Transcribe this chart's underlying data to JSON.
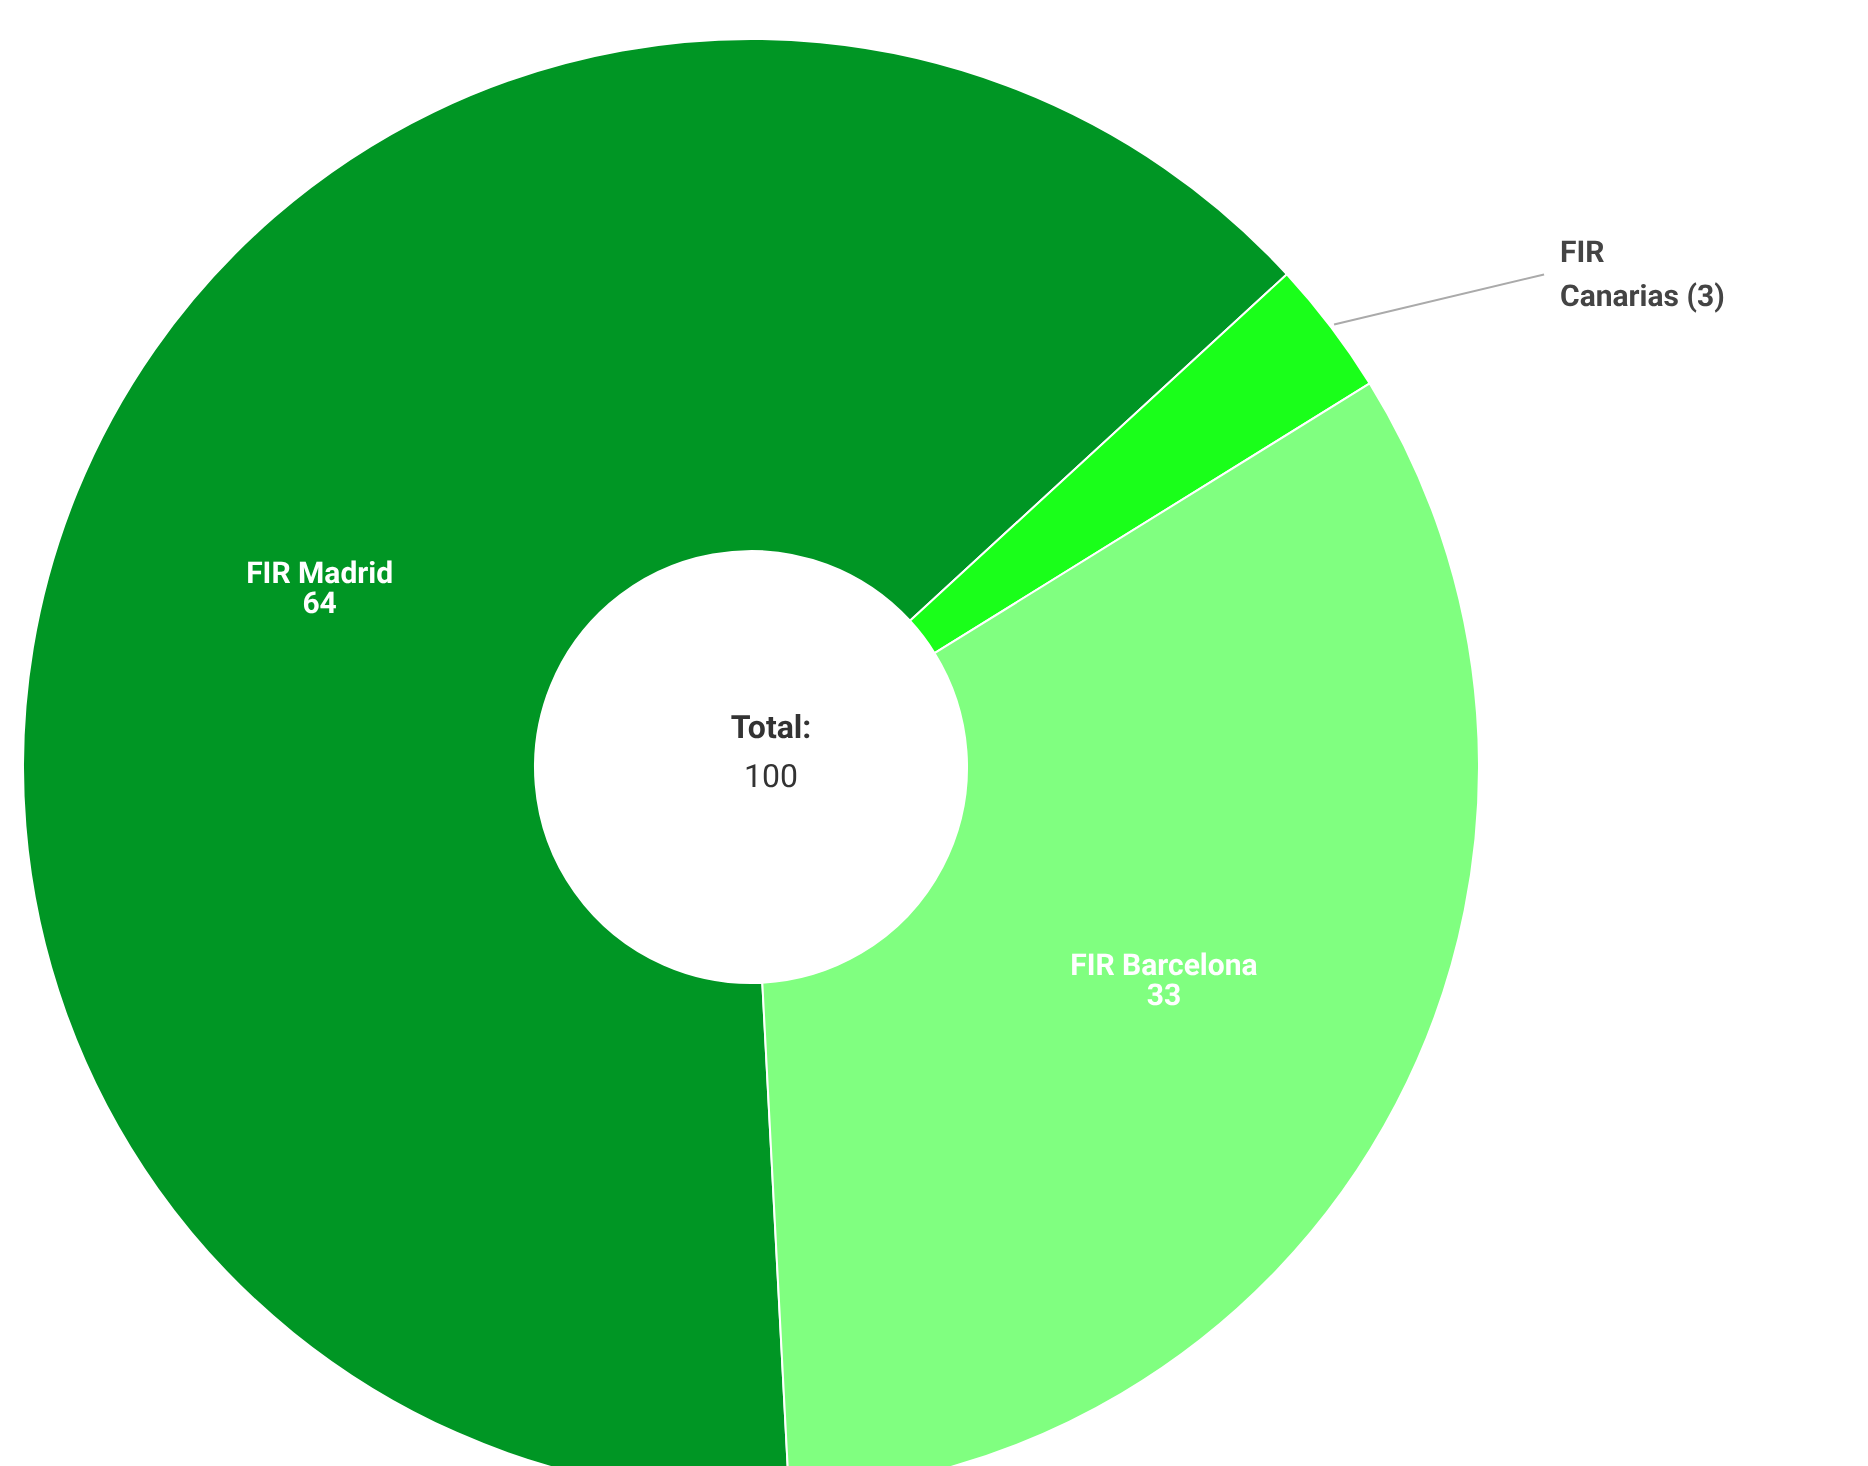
{
  "chart_data": {
    "type": "donut",
    "categories": [
      "FIR Madrid",
      "FIR Canarias",
      "FIR Barcelona"
    ],
    "values": [
      64,
      3,
      33
    ],
    "colors": [
      "#009624",
      "#1aff1a",
      "#80ff80"
    ],
    "value_labels": [
      "64",
      "(3)",
      "33"
    ],
    "annotations": [
      "Total:",
      "100"
    ]
  }
}
